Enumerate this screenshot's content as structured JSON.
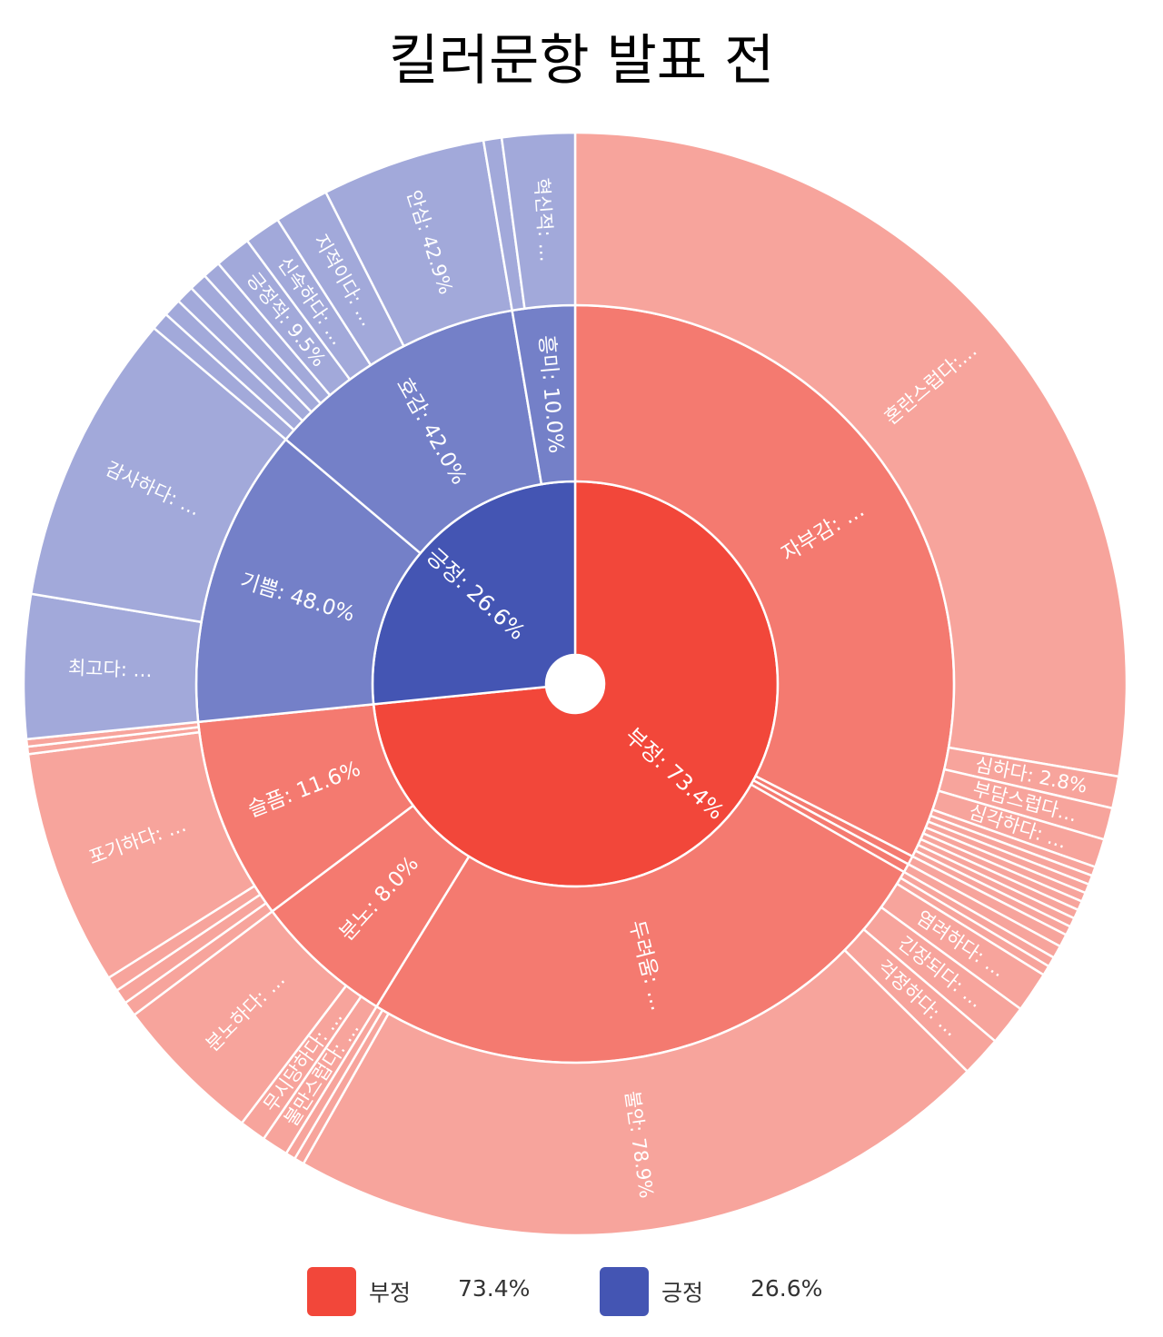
{
  "chart_data": {
    "type": "sunburst",
    "title": "킬러문항 발표 전",
    "legend_position": "bottom",
    "colors": {
      "negative_l1": "#f2473a",
      "negative_l2": "#f47a70",
      "negative_l3": "#f7a49c",
      "positive_l1": "#4455b3",
      "positive_l2": "#7480c8",
      "positive_l3": "#a2a9da"
    },
    "legend": [
      {
        "name": "부정",
        "value": "73.4%",
        "color": "#f2473a"
      },
      {
        "name": "긍정",
        "value": "26.6%",
        "color": "#4455b3"
      }
    ],
    "nodes": [
      {
        "label": "부정: 73.4%",
        "share": 73.4,
        "color_key": "negative",
        "children": [
          {
            "label": "자부감: …",
            "share": 43.6,
            "children": [
              {
                "label": "혼란스럽다:…",
                "share": 83.0
              },
              {
                "label": "심하다: 2.8%",
                "share": 2.8
              },
              {
                "label": "부담스럽다…",
                "share": 2.8
              },
              {
                "label": "심각하다: …",
                "share": 2.5
              },
              {
                "label": "",
                "share": 0.8
              },
              {
                "label": "",
                "share": 0.8
              },
              {
                "label": "",
                "share": 0.8
              },
              {
                "label": "",
                "share": 0.8
              },
              {
                "label": "",
                "share": 0.8
              },
              {
                "label": "",
                "share": 0.8
              },
              {
                "label": "",
                "share": 0.8
              },
              {
                "label": "",
                "share": 0.8
              }
            ]
          },
          {
            "label": "",
            "share": 0.5,
            "children": [
              {
                "label": "",
                "share": 100
              }
            ]
          },
          {
            "label": "",
            "share": 0.5,
            "children": [
              {
                "label": "",
                "share": 100
              }
            ]
          },
          {
            "label": "두려움: …",
            "share": 34.2,
            "children": [
              {
                "label": "",
                "share": 1.1
              },
              {
                "label": "",
                "share": 1.1
              },
              {
                "label": "염려하다: …",
                "share": 4.5
              },
              {
                "label": "긴장되다: …",
                "share": 4.5
              },
              {
                "label": "걱정하다: …",
                "share": 4.5
              },
              {
                "label": "불안: 78.9%",
                "share": 78.9
              },
              {
                "label": "",
                "share": 1.1
              },
              {
                "label": "",
                "share": 1.1
              }
            ]
          },
          {
            "label": "분노: 8.0%",
            "share": 8.0,
            "children": [
              {
                "label": "불만스럽다: …",
                "share": 13.0
              },
              {
                "label": "무시당하다: …",
                "share": 13.0
              },
              {
                "label": "분노하다: …",
                "share": 74.0
              }
            ]
          },
          {
            "label": "슬픔: 11.6%",
            "share": 11.6,
            "children": [
              {
                "label": "",
                "share": 5.0
              },
              {
                "label": "",
                "share": 5.0
              },
              {
                "label": "",
                "share": 5.0
              },
              {
                "label": "포기하다: …",
                "share": 79.5
              },
              {
                "label": "",
                "share": 2.5
              },
              {
                "label": "",
                "share": 2.5
              }
            ]
          }
        ]
      },
      {
        "label": "긍정: 26.6%",
        "share": 26.6,
        "color_key": "positive",
        "children": [
          {
            "label": "기쁨: 48.0%",
            "share": 48.0,
            "children": [
              {
                "label": "최고다: …",
                "share": 33.0
              },
              {
                "label": "감사하다: …",
                "share": 67.0
              }
            ]
          },
          {
            "label": "호감: 42.0%",
            "share": 42.0,
            "children": [
              {
                "label": "",
                "share": 4.7
              },
              {
                "label": "",
                "share": 4.7
              },
              {
                "label": "",
                "share": 4.7
              },
              {
                "label": "",
                "share": 4.7
              },
              {
                "label": "",
                "share": 4.7
              },
              {
                "label": "긍정적: 9.5%",
                "share": 9.5
              },
              {
                "label": "신속하다: …",
                "share": 9.5
              },
              {
                "label": "지적이다: …",
                "share": 14.3
              },
              {
                "label": "안심: 42.9%",
                "share": 42.9
              }
            ]
          },
          {
            "label": "흥미: 10.0%",
            "share": 10.0,
            "children": [
              {
                "label": "",
                "share": 20.0
              },
              {
                "label": "혁신적: …",
                "share": 80.0
              }
            ]
          }
        ]
      }
    ]
  }
}
